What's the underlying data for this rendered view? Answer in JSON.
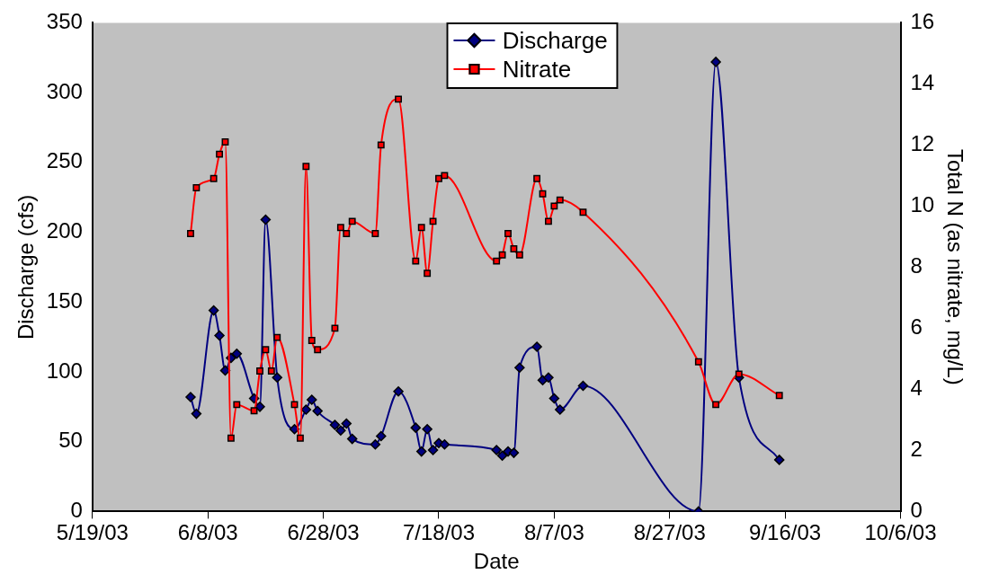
{
  "chart_data": {
    "type": "line",
    "xlabel": "Date",
    "ylabel": "Discharge (cfs)",
    "y2label": "Total N (as nitrate, mg/L)",
    "xlim": [
      "2003-05-19",
      "2003-10-06"
    ],
    "xticks": [
      {
        "value": "2003-05-19",
        "label": "5/19/03"
      },
      {
        "value": "2003-06-08",
        "label": "6/8/03"
      },
      {
        "value": "2003-06-28",
        "label": "6/28/03"
      },
      {
        "value": "2003-07-18",
        "label": "7/18/03"
      },
      {
        "value": "2003-08-07",
        "label": "8/7/03"
      },
      {
        "value": "2003-08-27",
        "label": "8/27/03"
      },
      {
        "value": "2003-09-16",
        "label": "9/16/03"
      },
      {
        "value": "2003-10-06",
        "label": "10/6/03"
      }
    ],
    "ylim": [
      0,
      350
    ],
    "yticks": [
      0,
      50,
      100,
      150,
      200,
      250,
      300,
      350
    ],
    "y2lim": [
      0,
      16
    ],
    "y2ticks": [
      0,
      2,
      4,
      6,
      8,
      10,
      12,
      14,
      16
    ],
    "legend": "top",
    "grid": false,
    "series": [
      {
        "name": "Discharge",
        "color": "#000080",
        "marker": "diamond",
        "axis": "y",
        "x": [
          "2003-06-05",
          "2003-06-06",
          "2003-06-09",
          "2003-06-10",
          "2003-06-11",
          "2003-06-12",
          "2003-06-13",
          "2003-06-16",
          "2003-06-17",
          "2003-06-18",
          "2003-06-20",
          "2003-06-23",
          "2003-06-25",
          "2003-06-26",
          "2003-06-27",
          "2003-06-30",
          "2003-07-01",
          "2003-07-02",
          "2003-07-03",
          "2003-07-07",
          "2003-07-08",
          "2003-07-11",
          "2003-07-14",
          "2003-07-15",
          "2003-07-16",
          "2003-07-17",
          "2003-07-18",
          "2003-07-19",
          "2003-07-28",
          "2003-07-29",
          "2003-07-30",
          "2003-07-31",
          "2003-08-01",
          "2003-08-04",
          "2003-08-05",
          "2003-08-06",
          "2003-08-07",
          "2003-08-08",
          "2003-08-12",
          "2003-09-01",
          "2003-09-04",
          "2003-09-08",
          "2003-09-15"
        ],
        "values": [
          82,
          70,
          144,
          126,
          101,
          110,
          113,
          81,
          75,
          209,
          96,
          59,
          73,
          80,
          72,
          62,
          58,
          63,
          52,
          48,
          54,
          86,
          60,
          43,
          59,
          44,
          49,
          48,
          44,
          40,
          43,
          42,
          103,
          118,
          94,
          96,
          81,
          73,
          90,
          0,
          322,
          96,
          37
        ]
      },
      {
        "name": "Nitrate",
        "color": "#ff0000",
        "marker": "square",
        "axis": "y2",
        "x": [
          "2003-06-05",
          "2003-06-06",
          "2003-06-09",
          "2003-06-10",
          "2003-06-11",
          "2003-06-12",
          "2003-06-13",
          "2003-06-16",
          "2003-06-17",
          "2003-06-18",
          "2003-06-19",
          "2003-06-20",
          "2003-06-23",
          "2003-06-24",
          "2003-06-25",
          "2003-06-26",
          "2003-06-27",
          "2003-06-30",
          "2003-07-01",
          "2003-07-02",
          "2003-07-03",
          "2003-07-07",
          "2003-07-08",
          "2003-07-11",
          "2003-07-14",
          "2003-07-15",
          "2003-07-16",
          "2003-07-17",
          "2003-07-18",
          "2003-07-19",
          "2003-07-28",
          "2003-07-29",
          "2003-07-30",
          "2003-07-31",
          "2003-08-01",
          "2003-08-04",
          "2003-08-05",
          "2003-08-06",
          "2003-08-07",
          "2003-08-08",
          "2003-08-12",
          "2003-09-01",
          "2003-09-04",
          "2003-09-08",
          "2003-09-15"
        ],
        "values": [
          9.1,
          10.6,
          10.9,
          11.7,
          12.1,
          2.4,
          3.5,
          3.3,
          4.6,
          5.3,
          4.6,
          5.7,
          3.5,
          2.4,
          11.3,
          5.6,
          5.3,
          6.0,
          9.3,
          9.1,
          9.5,
          9.1,
          12.0,
          13.5,
          8.2,
          9.3,
          7.8,
          9.5,
          10.9,
          11.0,
          8.2,
          8.4,
          9.1,
          8.6,
          8.4,
          10.9,
          10.4,
          9.5,
          10.0,
          10.2,
          9.8,
          4.9,
          3.5,
          4.5,
          3.8
        ]
      }
    ]
  }
}
